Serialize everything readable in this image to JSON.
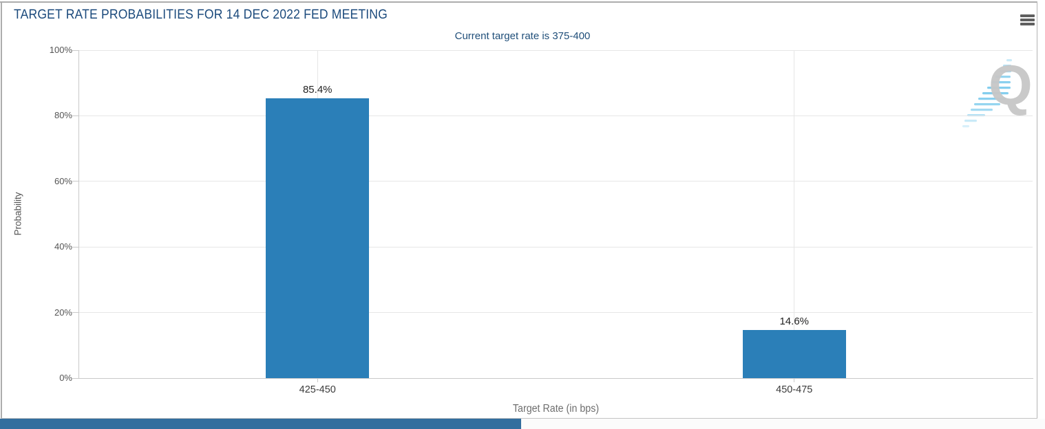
{
  "header": {
    "title": "TARGET RATE PROBABILITIES FOR 14 DEC 2022 FED MEETING",
    "menu_icon": "hamburger-menu-icon"
  },
  "chart_data": {
    "type": "bar",
    "title": "TARGET RATE PROBABILITIES FOR 14 DEC 2022 FED MEETING",
    "subtitle": "Current target rate is 375-400",
    "categories": [
      "425-450",
      "450-475"
    ],
    "values": [
      85.4,
      14.6
    ],
    "value_labels": [
      "85.4%",
      "14.6%"
    ],
    "xlabel": "Target Rate (in bps)",
    "ylabel": "Probability",
    "ylim": [
      0,
      100
    ],
    "yticks": [
      0,
      20,
      40,
      60,
      80,
      100
    ],
    "ytick_suffix": "%",
    "grid": true,
    "legend": "none",
    "bar_color": "#2b7fb8"
  },
  "watermark": {
    "letter": "Q"
  },
  "colors": {
    "title_text": "#1b4a7c",
    "subtitle_text": "#1f4e79",
    "bar": "#2b7fb8",
    "axis_label": "#545454",
    "grid_line": "#e6e6e6",
    "axis_line": "#c9c9c9",
    "scroll_thumb": "#336e9e"
  }
}
